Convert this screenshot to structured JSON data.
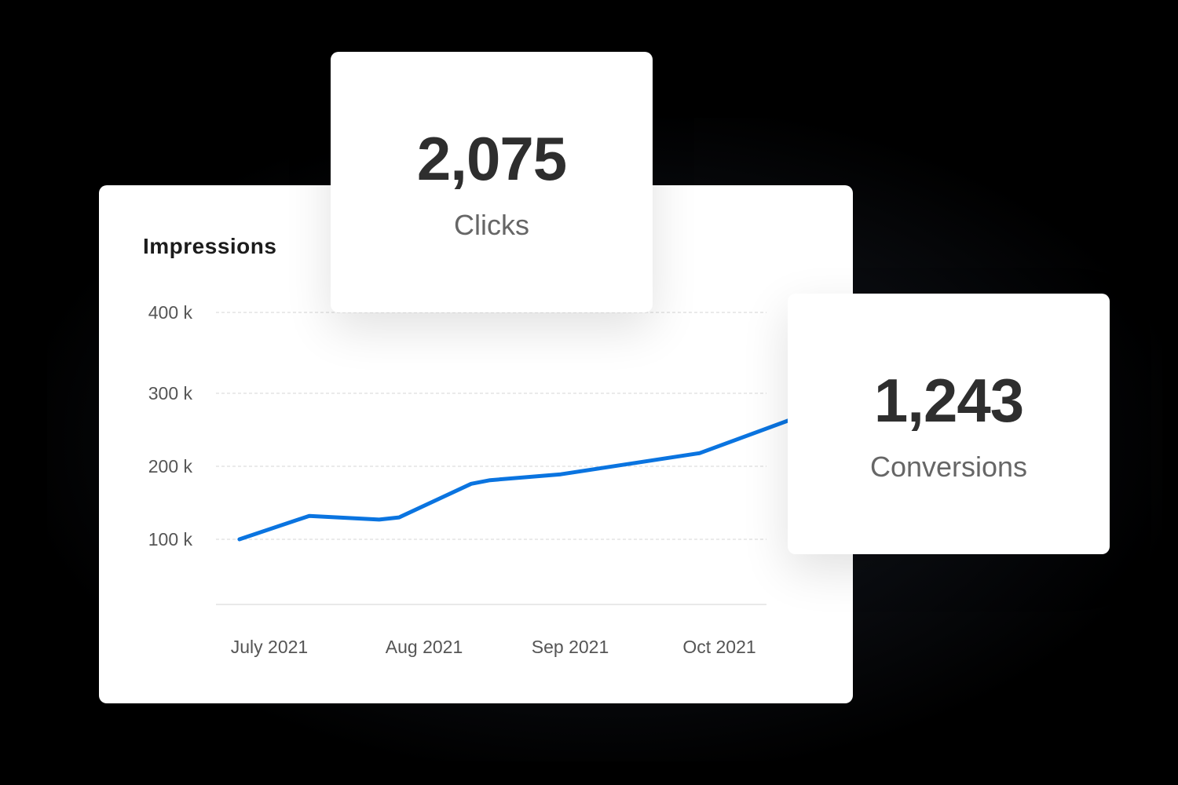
{
  "chart_data": {
    "type": "line",
    "title": "Impressions",
    "xlabel": "",
    "ylabel": "",
    "y_ticks": [
      {
        "value": 100000,
        "label": "100 k"
      },
      {
        "value": 200000,
        "label": "200 k"
      },
      {
        "value": 300000,
        "label": "300 k"
      },
      {
        "value": 400000,
        "label": "400 k"
      }
    ],
    "x_ticks": [
      {
        "date": "2021-07-01",
        "label": "July 2021"
      },
      {
        "date": "2021-08-01",
        "label": "Aug 2021"
      },
      {
        "date": "2021-09-01",
        "label": "Sep 2021"
      },
      {
        "date": "2021-10-01",
        "label": "Oct 2021"
      }
    ],
    "grid": true,
    "series": [
      {
        "color": "#0a74e0",
        "points": [
          {
            "x": "2021-06-25",
            "y": 100000
          },
          {
            "x": "2021-07-09",
            "y": 132000
          },
          {
            "x": "2021-07-23",
            "y": 127000
          },
          {
            "x": "2021-07-27",
            "y": 130000
          },
          {
            "x": "2021-08-11",
            "y": 176000
          },
          {
            "x": "2021-08-15",
            "y": 181000
          },
          {
            "x": "2021-08-30",
            "y": 189000
          },
          {
            "x": "2021-09-27",
            "y": 218000
          },
          {
            "x": "2021-10-15",
            "y": 263000
          }
        ]
      }
    ]
  },
  "stats": {
    "clicks": {
      "value": "2,075",
      "label": "Clicks"
    },
    "conversions": {
      "value": "1,243",
      "label": "Conversions"
    }
  }
}
